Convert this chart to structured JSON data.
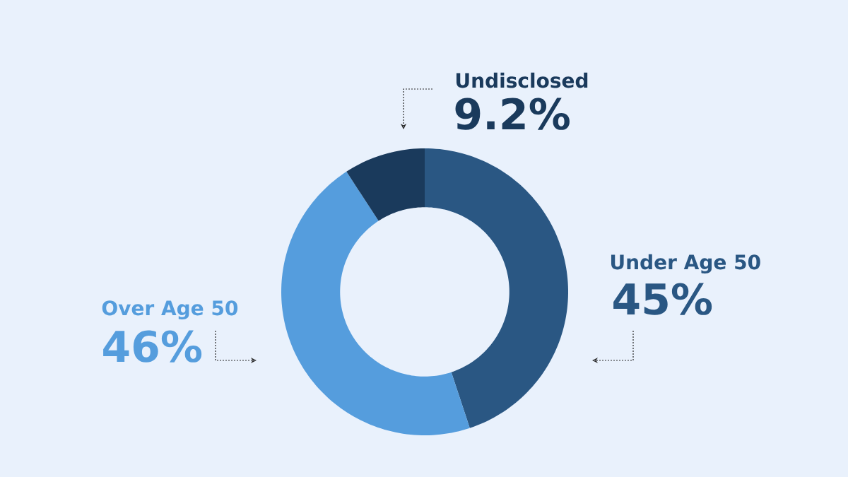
{
  "chart_data": {
    "type": "donut",
    "categories": [
      "Under Age 50",
      "Over Age 50",
      "Undisclosed"
    ],
    "values": [
      45,
      46,
      9.2
    ],
    "value_labels": [
      "45%",
      "46%",
      "9.2%"
    ],
    "colors": [
      "#2a5783",
      "#559ddd",
      "#1a3a5c"
    ]
  }
}
